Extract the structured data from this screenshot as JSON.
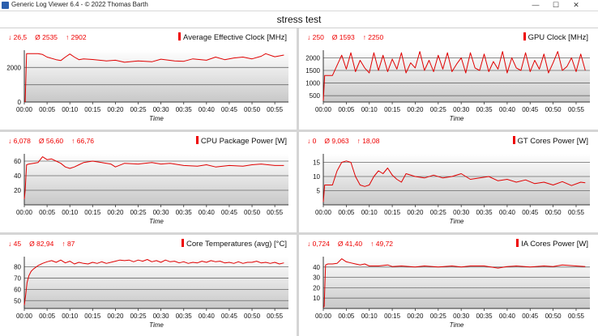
{
  "window": {
    "title": "Generic Log Viewer 6.4 - © 2022 Thomas Barth",
    "minimize": "—",
    "maximize": "☐",
    "close": "✕"
  },
  "header": {
    "title": "stress test"
  },
  "colors": {
    "line": "#e00000",
    "plotTop": "#ffffff",
    "plotBottom": "#c8c8c8"
  },
  "chart_data": [
    {
      "type": "line",
      "title": "Average Effective Clock [MHz]",
      "stats": {
        "min": "26,5",
        "avg": "2535",
        "max": "2902"
      },
      "xlabel": "Time",
      "ylabel": "",
      "xticks": [
        "00:00",
        "00:05",
        "00:10",
        "00:15",
        "00:20",
        "00:25",
        "00:30",
        "00:35",
        "00:40",
        "00:45",
        "00:50",
        "00:55"
      ],
      "yticks": [
        0,
        1000,
        2000
      ],
      "yticklabels": [
        "0",
        "",
        "2000"
      ],
      "ylim": [
        0,
        3000
      ],
      "xlim": [
        0,
        58
      ],
      "x": [
        0,
        0.2,
        0.5,
        1,
        2,
        3,
        4,
        5,
        7,
        8,
        9,
        10,
        11,
        12,
        13,
        15,
        18,
        20,
        22,
        25,
        28,
        30,
        33,
        35,
        37,
        40,
        42,
        44,
        46,
        48,
        50,
        52,
        53,
        55,
        57
      ],
      "y": [
        26,
        30,
        2800,
        2800,
        2800,
        2800,
        2750,
        2600,
        2450,
        2400,
        2600,
        2780,
        2600,
        2450,
        2500,
        2460,
        2380,
        2420,
        2300,
        2380,
        2330,
        2480,
        2380,
        2360,
        2500,
        2420,
        2600,
        2450,
        2550,
        2600,
        2500,
        2650,
        2800,
        2620,
        2720
      ]
    },
    {
      "type": "line",
      "title": "GPU Clock [MHz]",
      "stats": {
        "min": "250",
        "avg": "1593",
        "max": "2250"
      },
      "xlabel": "Time",
      "ylabel": "",
      "xticks": [
        "00:00",
        "00:05",
        "00:10",
        "00:15",
        "00:20",
        "00:25",
        "00:30",
        "00:35",
        "00:40",
        "00:45",
        "00:50",
        "00:55"
      ],
      "yticks": [
        500,
        1000,
        1500,
        2000
      ],
      "yticklabels": [
        "500",
        "1000",
        "1500",
        "2000"
      ],
      "ylim": [
        250,
        2300
      ],
      "xlim": [
        0,
        58
      ],
      "x": [
        0,
        0.3,
        0.5,
        2,
        3,
        4,
        5,
        6,
        7,
        8,
        9,
        10,
        11,
        12,
        13,
        14,
        15,
        16,
        17,
        18,
        19,
        20,
        21,
        22,
        23,
        24,
        25,
        26,
        27,
        28,
        29,
        30,
        31,
        32,
        33,
        34,
        35,
        36,
        37,
        38,
        39,
        40,
        41,
        42,
        43,
        44,
        45,
        46,
        47,
        48,
        49,
        50,
        51,
        52,
        53,
        54,
        55,
        56,
        57
      ],
      "y": [
        300,
        1300,
        1300,
        1300,
        1700,
        2100,
        1550,
        2200,
        1450,
        1900,
        1600,
        1400,
        2200,
        1500,
        2100,
        1450,
        1950,
        1550,
        2200,
        1400,
        1800,
        1600,
        2250,
        1500,
        1900,
        1450,
        2100,
        1550,
        2200,
        1450,
        1750,
        2000,
        1400,
        2200,
        1600,
        1500,
        2150,
        1450,
        1850,
        1550,
        2250,
        1400,
        2000,
        1600,
        1500,
        2200,
        1450,
        1900,
        1550,
        2150,
        1400,
        1800,
        2250,
        1500,
        1650,
        2000,
        1450,
        2150,
        1500
      ]
    },
    {
      "type": "line",
      "title": "CPU Package Power [W]",
      "stats": {
        "min": "6,078",
        "avg": "56,60",
        "max": "66,76"
      },
      "xlabel": "Time",
      "ylabel": "",
      "xticks": [
        "00:00",
        "00:05",
        "00:10",
        "00:15",
        "00:20",
        "00:25",
        "00:30",
        "00:35",
        "00:40",
        "00:45",
        "00:50",
        "00:55"
      ],
      "yticks": [
        20,
        40,
        60
      ],
      "yticklabels": [
        "20",
        "40",
        "60"
      ],
      "ylim": [
        0,
        70
      ],
      "xlim": [
        0,
        58
      ],
      "x": [
        0,
        0.2,
        0.5,
        1,
        2,
        3,
        4,
        5,
        6,
        7,
        8,
        9,
        10,
        11,
        12,
        13,
        15,
        17,
        19,
        20,
        22,
        25,
        28,
        30,
        32,
        35,
        38,
        40,
        42,
        45,
        48,
        50,
        52,
        55,
        57
      ],
      "y": [
        8,
        20,
        55,
        56,
        57,
        58,
        66,
        62,
        63,
        60,
        57,
        52,
        50,
        52,
        55,
        58,
        60,
        58,
        56,
        52,
        57,
        56,
        58,
        56,
        57,
        54,
        53,
        55,
        52,
        54,
        53,
        55,
        56,
        54,
        54
      ]
    },
    {
      "type": "line",
      "title": "GT Cores Power [W]",
      "stats": {
        "min": "0",
        "avg": "9,063",
        "max": "18,08"
      },
      "xlabel": "Time",
      "ylabel": "",
      "xticks": [
        "00:00",
        "00:05",
        "00:10",
        "00:15",
        "00:20",
        "00:25",
        "00:30",
        "00:35",
        "00:40",
        "00:45",
        "00:50",
        "00:55"
      ],
      "yticks": [
        5,
        10,
        15
      ],
      "yticklabels": [
        "5",
        "10",
        "15"
      ],
      "ylim": [
        0,
        18
      ],
      "xlim": [
        0,
        58
      ],
      "x": [
        0,
        0.3,
        0.6,
        2,
        3,
        4,
        5,
        6,
        7,
        8,
        9,
        10,
        11,
        12,
        13,
        14,
        15,
        16,
        17,
        18,
        20,
        22,
        24,
        26,
        28,
        30,
        32,
        34,
        36,
        38,
        40,
        42,
        44,
        46,
        48,
        50,
        52,
        54,
        56,
        57
      ],
      "y": [
        1,
        7,
        7,
        7,
        12,
        15,
        15.5,
        15,
        10,
        7,
        6.5,
        7,
        10,
        12,
        11,
        13,
        10.5,
        9,
        8,
        11,
        10,
        9.5,
        10.5,
        9.5,
        10,
        11,
        9,
        9.5,
        10,
        8.5,
        9,
        8,
        8.8,
        7.5,
        8,
        7,
        8.2,
        6.8,
        8,
        7.8
      ]
    },
    {
      "type": "line",
      "title": "Core Temperatures (avg) [°C]",
      "stats": {
        "min": "45",
        "avg": "82,94",
        "max": "87"
      },
      "xlabel": "Time",
      "ylabel": "",
      "xticks": [
        "00:00",
        "00:05",
        "00:10",
        "00:15",
        "00:20",
        "00:25",
        "00:30",
        "00:35",
        "00:40",
        "00:45",
        "00:50",
        "00:55"
      ],
      "yticks": [
        50,
        60,
        70,
        80
      ],
      "yticklabels": [
        "50",
        "60",
        "70",
        "80"
      ],
      "ylim": [
        43,
        89
      ],
      "xlim": [
        0,
        58
      ],
      "x": [
        0,
        0.3,
        0.6,
        1,
        1.5,
        2,
        3,
        4,
        5,
        6,
        7,
        8,
        9,
        10,
        11,
        12,
        13,
        14,
        15,
        16,
        17,
        18,
        19,
        20,
        21,
        22,
        23,
        24,
        25,
        26,
        27,
        28,
        29,
        30,
        31,
        32,
        33,
        34,
        35,
        36,
        37,
        38,
        39,
        40,
        41,
        42,
        43,
        44,
        45,
        46,
        47,
        48,
        49,
        50,
        51,
        52,
        53,
        54,
        55,
        56,
        57
      ],
      "y": [
        46,
        55,
        66,
        72,
        76,
        78,
        81,
        83,
        84.5,
        85.5,
        84,
        86,
        83.5,
        85,
        82.5,
        84,
        83,
        82.5,
        84,
        83,
        84.5,
        83,
        84,
        85,
        86,
        85.5,
        86,
        84.5,
        86,
        85,
        86.5,
        84.5,
        85.5,
        84,
        86,
        84.5,
        85,
        83.5,
        84.5,
        83,
        84,
        83.5,
        85,
        84,
        85.5,
        84.5,
        85,
        83.5,
        84,
        83,
        84.5,
        83,
        84,
        84,
        85,
        83.5,
        84,
        83,
        84,
        82.5,
        83.5
      ]
    },
    {
      "type": "line",
      "title": "IA Cores Power [W]",
      "stats": {
        "min": "0,724",
        "avg": "41,40",
        "max": "49,72"
      },
      "xlabel": "Time",
      "ylabel": "",
      "xticks": [
        "00:00",
        "00:05",
        "00:10",
        "00:15",
        "00:20",
        "00:25",
        "00:30",
        "00:35",
        "00:40",
        "00:45",
        "00:50",
        "00:55"
      ],
      "yticks": [
        10,
        20,
        30,
        40
      ],
      "yticklabels": [
        "10",
        "20",
        "30",
        "40"
      ],
      "ylim": [
        0,
        50
      ],
      "xlim": [
        0,
        58
      ],
      "x": [
        0,
        0.2,
        0.5,
        1,
        2,
        3,
        4,
        5,
        6,
        7,
        8,
        9,
        10,
        12,
        14,
        15,
        17,
        20,
        22,
        25,
        28,
        30,
        32,
        35,
        38,
        40,
        42,
        45,
        48,
        50,
        52,
        55,
        57
      ],
      "y": [
        1,
        2,
        42,
        43,
        43,
        43.5,
        48,
        45,
        44,
        43,
        42,
        43,
        41,
        41,
        42,
        40.5,
        41,
        40,
        41,
        40,
        41,
        40,
        41,
        41,
        39,
        40.5,
        41,
        40,
        41,
        40.5,
        42,
        41,
        40.5
      ]
    }
  ]
}
